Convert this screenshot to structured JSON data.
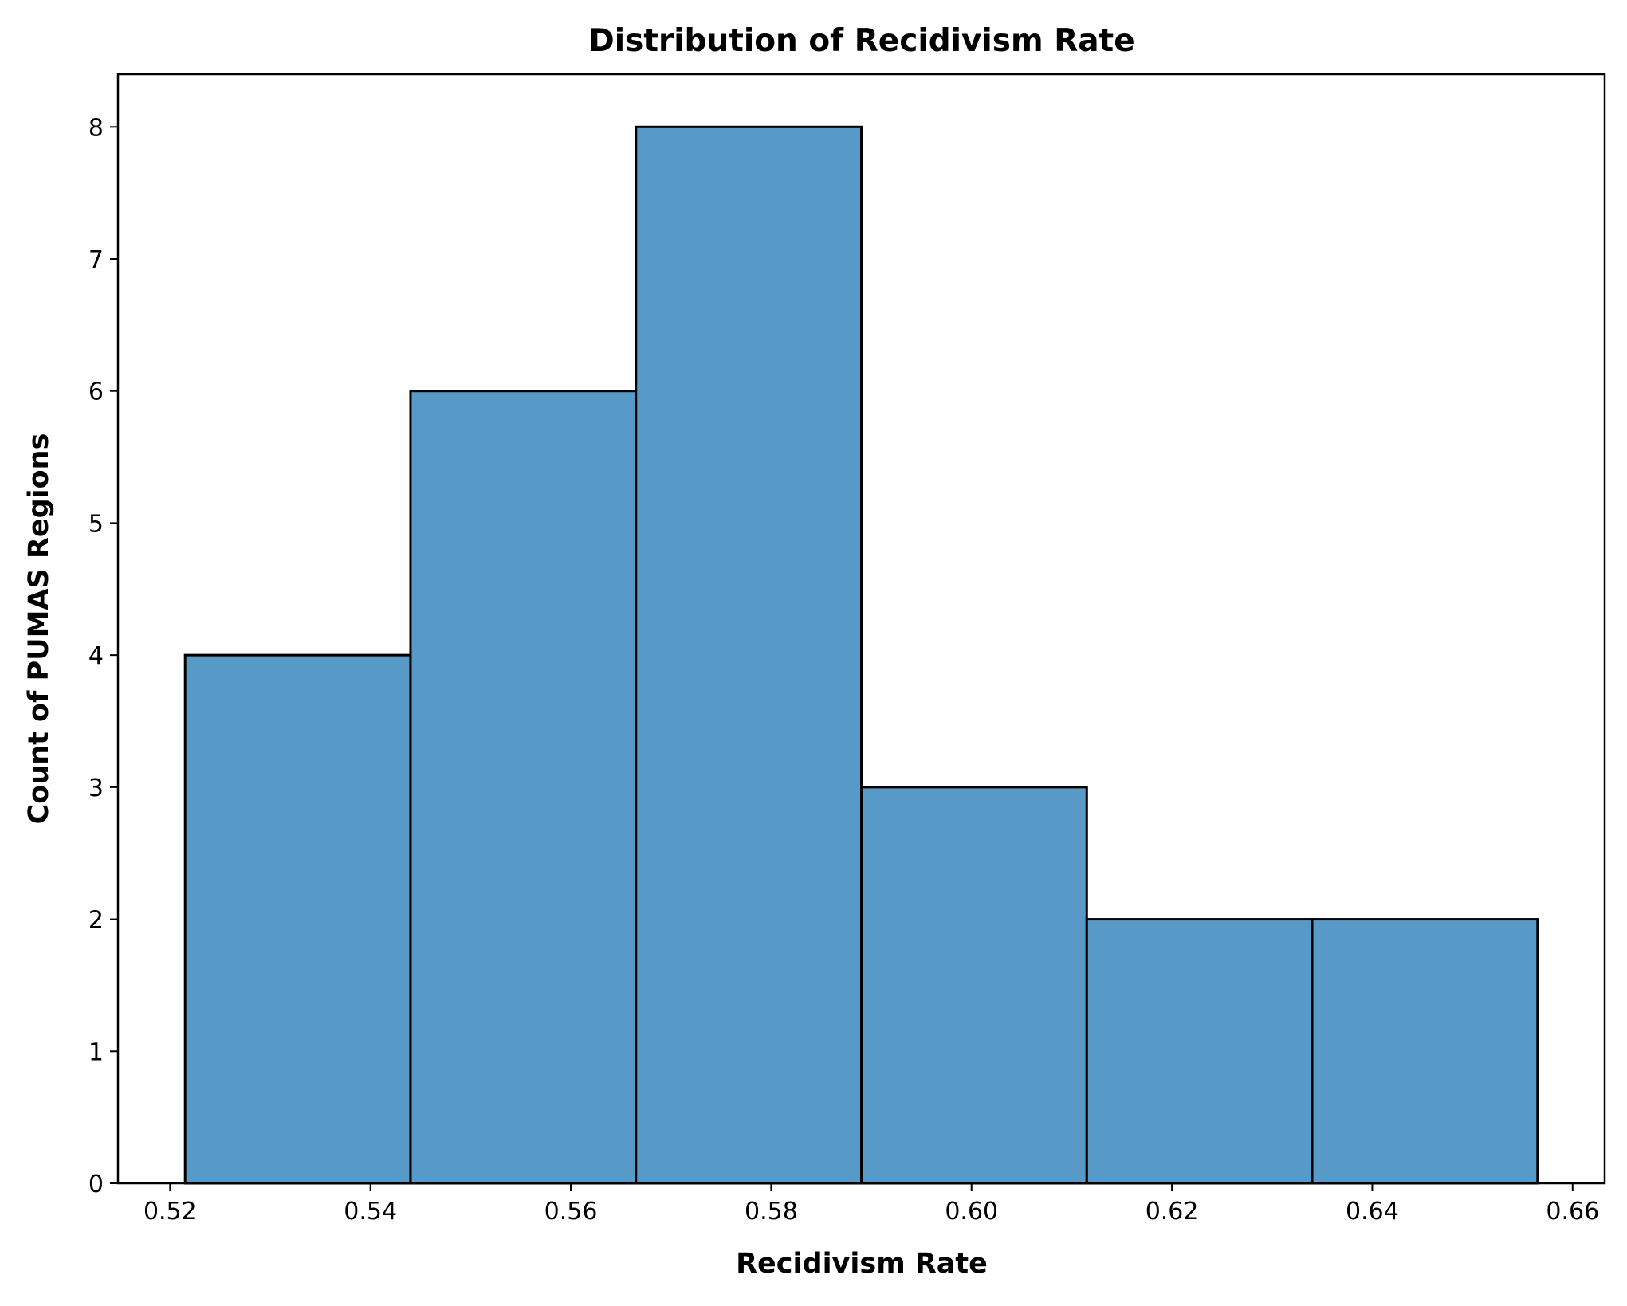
{
  "chart_data": {
    "type": "bar",
    "title": "Distribution of Recidivism Rate",
    "xlabel": "Recidivism Rate",
    "ylabel": "Count of PUMAS Regions",
    "bins": [
      {
        "x0": 0.5215,
        "x1": 0.544,
        "count": 4
      },
      {
        "x0": 0.544,
        "x1": 0.5665,
        "count": 6
      },
      {
        "x0": 0.5665,
        "x1": 0.589,
        "count": 8
      },
      {
        "x0": 0.589,
        "x1": 0.6115,
        "count": 3
      },
      {
        "x0": 0.6115,
        "x1": 0.634,
        "count": 2
      },
      {
        "x0": 0.634,
        "x1": 0.6565,
        "count": 2
      }
    ],
    "xlim": [
      0.5148,
      0.6632
    ],
    "ylim": [
      0,
      8.4
    ],
    "xticks": [
      0.52,
      0.54,
      0.56,
      0.58,
      0.6,
      0.62,
      0.64,
      0.66
    ],
    "xtick_labels": [
      "0.52",
      "0.54",
      "0.56",
      "0.58",
      "0.60",
      "0.62",
      "0.64",
      "0.66"
    ],
    "yticks": [
      0,
      1,
      2,
      3,
      4,
      5,
      6,
      7,
      8
    ],
    "ytick_labels": [
      "0",
      "1",
      "2",
      "3",
      "4",
      "5",
      "6",
      "7",
      "8"
    ],
    "grid": false,
    "bar_color": "#5799c7",
    "edge_color": "#000000"
  }
}
